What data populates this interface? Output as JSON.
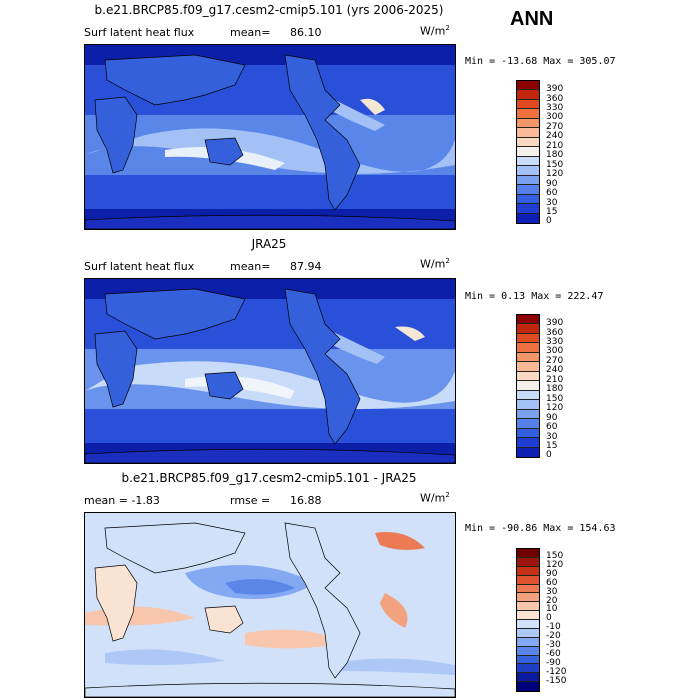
{
  "season": "ANN",
  "units": "W/m",
  "units_sup": "2",
  "colors": {
    "abs_scale": [
      "#000080",
      "#0d1fb5",
      "#1f3fd4",
      "#3360e0",
      "#5580ea",
      "#7aa0f0",
      "#a3c1f5",
      "#c8dbf8",
      "#f5f0ea",
      "#fbd9c4",
      "#f9b896",
      "#f59668",
      "#ef703f",
      "#e04a20",
      "#c0280c",
      "#8b0000"
    ],
    "diff_scale": [
      "#00007a",
      "#0b1a9c",
      "#1d3fc4",
      "#3563dc",
      "#5a86ea",
      "#84a9f3",
      "#adc8f7",
      "#d1e1fa",
      "#fbe3d4",
      "#f8c6ac",
      "#f3a280",
      "#ec7a55",
      "#de5230",
      "#c43115",
      "#9b1608",
      "#700000"
    ]
  },
  "panels": [
    {
      "id": "model",
      "title": "b.e21.BRCP85.f09_g17.cesm2-cmip5.101 (yrs 2006-2025)",
      "left_label": "Surf latent heat flux",
      "stat1_label": "mean=",
      "stat1_value": "86.10",
      "range_text": "Min = -13.68 Max = 305.07",
      "ticks": [
        "390",
        "360",
        "330",
        "300",
        "270",
        "240",
        "210",
        "180",
        "150",
        "120",
        "90",
        "60",
        "30",
        "15",
        "0"
      ]
    },
    {
      "id": "obs",
      "title": "JRA25",
      "left_label": "Surf latent heat flux",
      "stat1_label": "mean=",
      "stat1_value": "87.94",
      "range_text": "Min =   0.13 Max = 222.47",
      "ticks": [
        "390",
        "360",
        "330",
        "300",
        "270",
        "240",
        "210",
        "180",
        "150",
        "120",
        "90",
        "60",
        "30",
        "15",
        "0"
      ]
    },
    {
      "id": "diff",
      "title": "b.e21.BRCP85.f09_g17.cesm2-cmip5.101 - JRA25",
      "left_label": "mean =   -1.83",
      "stat1_label": "rmse =",
      "stat1_value": "16.88",
      "range_text": "Min = -90.86 Max = 154.63",
      "ticks": [
        "150",
        "120",
        "90",
        "60",
        "30",
        "20",
        "10",
        "0",
        "-10",
        "-20",
        "-30",
        "-60",
        "-90",
        "-120",
        "-150"
      ]
    }
  ]
}
